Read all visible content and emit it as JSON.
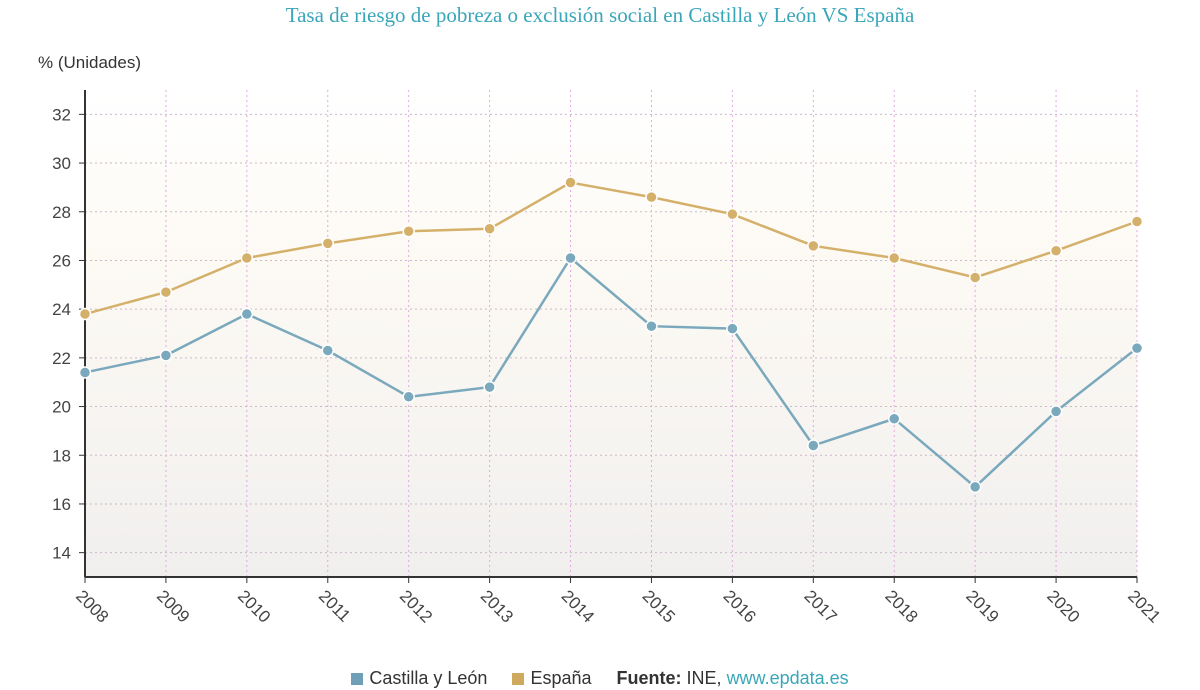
{
  "chart_data": {
    "type": "line",
    "title": "Tasa de riesgo de pobreza o exclusión social en Castilla y León VS España",
    "ylabel": "% (Unidades)",
    "xlabel": "",
    "x": [
      "2008",
      "2009",
      "2010",
      "2011",
      "2012",
      "2013",
      "2014",
      "2015",
      "2016",
      "2017",
      "2018",
      "2019",
      "2020",
      "2021"
    ],
    "yticks": [
      "14",
      "16",
      "18",
      "20",
      "22",
      "24",
      "26",
      "28",
      "30",
      "32"
    ],
    "ylim": [
      13,
      33
    ],
    "grid": true,
    "legend_position": "bottom",
    "series": [
      {
        "name": "Castilla y León",
        "color": "#7aa8bc",
        "values": [
          21.4,
          22.1,
          23.8,
          22.3,
          20.4,
          20.8,
          26.1,
          23.3,
          23.2,
          18.4,
          19.5,
          16.7,
          19.8,
          22.4
        ]
      },
      {
        "name": "España",
        "color": "#d4b06a",
        "values": [
          23.8,
          24.7,
          26.1,
          26.7,
          27.2,
          27.3,
          29.2,
          28.6,
          27.9,
          26.6,
          26.1,
          25.3,
          26.4,
          27.6
        ]
      }
    ]
  },
  "legend": {
    "castilla_label": "Castilla y León",
    "castilla_color": "#6f9fb6",
    "espana_label": "España",
    "espana_color": "#cfa95e",
    "source_label": "Fuente:",
    "source_value": "INE,",
    "source_link": "www.epdata.es"
  }
}
